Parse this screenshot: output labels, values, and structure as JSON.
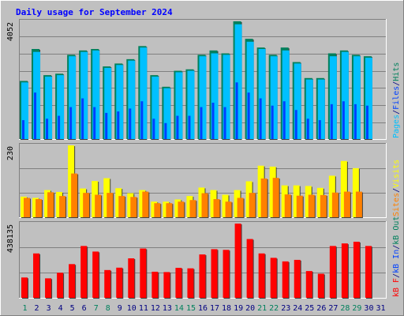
{
  "title": "Daily usage for September 2024",
  "colors": {
    "hits": "#00805c",
    "files": "#0040ff",
    "pages": "#00c0ff",
    "visits": "#ffff00",
    "sites": "#ff8000",
    "kb_in": "#0040ff",
    "kb_out": "#00805c",
    "kb_f": "#ff0000",
    "weekend_day": "#00805c",
    "weekday": "#000080",
    "title": "#0000ff"
  },
  "chart_data": [
    {
      "type": "bar",
      "panel": "hits-files-pages",
      "categories": [
        "1",
        "2",
        "3",
        "4",
        "5",
        "6",
        "7",
        "8",
        "9",
        "10",
        "11",
        "12",
        "13",
        "14",
        "15",
        "16",
        "17",
        "18",
        "19",
        "20",
        "21",
        "22",
        "23",
        "24",
        "25",
        "26",
        "27",
        "28",
        "29",
        "30",
        "31"
      ],
      "ylim": [
        0,
        4052
      ],
      "ytick": "4052",
      "legend": [
        {
          "label": "Pages",
          "color": "#00c0ff"
        },
        {
          "label": "/",
          "color": "#000080"
        },
        {
          "label": "Files",
          "color": "#0040ff"
        },
        {
          "label": "/",
          "color": "#000080"
        },
        {
          "label": "Hits",
          "color": "#00805c"
        }
      ],
      "series": [
        {
          "name": "Hits",
          "values": [
            2000,
            3100,
            2200,
            2250,
            2900,
            3050,
            3100,
            2500,
            2600,
            2750,
            3200,
            2200,
            1800,
            2350,
            2400,
            2900,
            3050,
            2950,
            4052,
            3450,
            3150,
            2900,
            3150,
            2650,
            2100,
            2100,
            2950,
            3050,
            2900,
            2850,
            0
          ],
          "pages_values": [
            1950,
            3000,
            2150,
            2200,
            2850,
            3000,
            3050,
            2450,
            2550,
            2700,
            3150,
            2150,
            1750,
            2300,
            2350,
            2850,
            2950,
            2900,
            3950,
            3350,
            3100,
            2850,
            3050,
            2600,
            2050,
            2050,
            2850,
            3000,
            2850,
            2800,
            0
          ]
        },
        {
          "name": "Files",
          "values": [
            650,
            1600,
            700,
            800,
            1100,
            1400,
            1100,
            900,
            950,
            1050,
            1300,
            700,
            550,
            800,
            800,
            1100,
            1250,
            1100,
            1950,
            1600,
            1400,
            1150,
            1300,
            1000,
            700,
            650,
            1200,
            1300,
            1200,
            1150,
            0
          ]
        }
      ]
    },
    {
      "type": "bar",
      "panel": "visits-sites",
      "categories": [
        "1",
        "2",
        "3",
        "4",
        "5",
        "6",
        "7",
        "8",
        "9",
        "10",
        "11",
        "12",
        "13",
        "14",
        "15",
        "16",
        "17",
        "18",
        "19",
        "20",
        "21",
        "22",
        "23",
        "24",
        "25",
        "26",
        "27",
        "28",
        "29",
        "30",
        "31"
      ],
      "ylim": [
        0,
        230
      ],
      "ytick": "230",
      "legend": [
        {
          "label": "Sites",
          "color": "#ff8000"
        },
        {
          "label": "/",
          "color": "#000080"
        },
        {
          "label": "Visits",
          "color": "#ffff00"
        }
      ],
      "series": [
        {
          "name": "Visits",
          "values": [
            66,
            62,
            87,
            81,
            230,
            92,
            116,
            125,
            93,
            77,
            87,
            50,
            50,
            57,
            68,
            95,
            87,
            72,
            87,
            115,
            165,
            162,
            102,
            102,
            100,
            94,
            133,
            180,
            157,
            0,
            0
          ]
        },
        {
          "name": "Sites",
          "values": [
            62,
            58,
            80,
            68,
            140,
            78,
            72,
            78,
            68,
            65,
            82,
            45,
            45,
            50,
            55,
            77,
            58,
            50,
            62,
            78,
            124,
            126,
            73,
            69,
            72,
            71,
            79,
            82,
            82,
            0,
            0
          ]
        }
      ]
    },
    {
      "type": "bar",
      "panel": "kb",
      "categories": [
        "1",
        "2",
        "3",
        "4",
        "5",
        "6",
        "7",
        "8",
        "9",
        "10",
        "11",
        "12",
        "13",
        "14",
        "15",
        "16",
        "17",
        "18",
        "19",
        "20",
        "21",
        "22",
        "23",
        "24",
        "25",
        "26",
        "27",
        "28",
        "29",
        "30",
        "31"
      ],
      "ylim": [
        0,
        438135
      ],
      "ytick": "438135",
      "legend": [
        {
          "label": "kB F",
          "color": "#ff0000"
        },
        {
          "label": "/",
          "color": "#000080"
        },
        {
          "label": "kB In",
          "color": "#0040ff"
        },
        {
          "label": "/",
          "color": "#000080"
        },
        {
          "label": "kB Out",
          "color": "#00805c"
        }
      ],
      "series": [
        {
          "name": "kB F",
          "values": [
            120000,
            262000,
            115000,
            148000,
            199000,
            306000,
            273000,
            164000,
            178000,
            233000,
            291000,
            154000,
            152000,
            177000,
            174000,
            256000,
            287000,
            283000,
            438135,
            347000,
            262000,
            236000,
            215000,
            224000,
            158000,
            142000,
            306000,
            321000,
            331000,
            306000,
            0
          ]
        }
      ]
    }
  ],
  "weekend_days": [
    1,
    7,
    8,
    14,
    15,
    21,
    22,
    28,
    29
  ]
}
